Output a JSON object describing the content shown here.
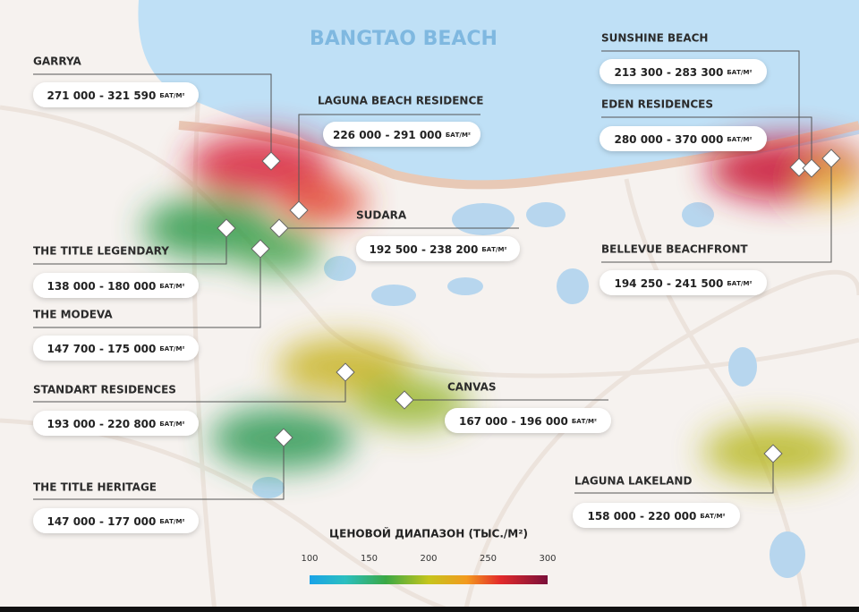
{
  "map_title": "BANGTAO BEACH",
  "price_unit": "БАТ/М²",
  "projects": [
    {
      "name": "GARRYA",
      "price": "271 000 - 321 590"
    },
    {
      "name": "LAGUNA BEACH RESIDENCE",
      "price": "226 000 - 291 000"
    },
    {
      "name": "SUNSHINE BEACH",
      "price": "213 300 - 283 300"
    },
    {
      "name": "EDEN RESIDENCES",
      "price": "280 000 - 370 000"
    },
    {
      "name": "SUDARA",
      "price": "192 500 - 238 200"
    },
    {
      "name": "THE TITLE LEGENDARY",
      "price": "138 000 - 180 000"
    },
    {
      "name": "THE MODEVA",
      "price": "147 700 - 175 000"
    },
    {
      "name": "BELLEVUE BEACHFRONT",
      "price": "194 250 - 241 500"
    },
    {
      "name": "STANDART RESIDENCES",
      "price": "193 000 - 220 800"
    },
    {
      "name": "CANVAS",
      "price": "167 000 - 196 000"
    },
    {
      "name": "THE TITLE HERITAGE",
      "price": "147 000 - 177 000"
    },
    {
      "name": "LAGUNA LAKELAND",
      "price": "158 000 - 220 000"
    }
  ],
  "legend": {
    "title": "ЦЕНОВОЙ ДИАПАЗОН (ТЫС./М²)",
    "ticks": [
      100,
      150,
      200,
      250,
      300
    ]
  }
}
